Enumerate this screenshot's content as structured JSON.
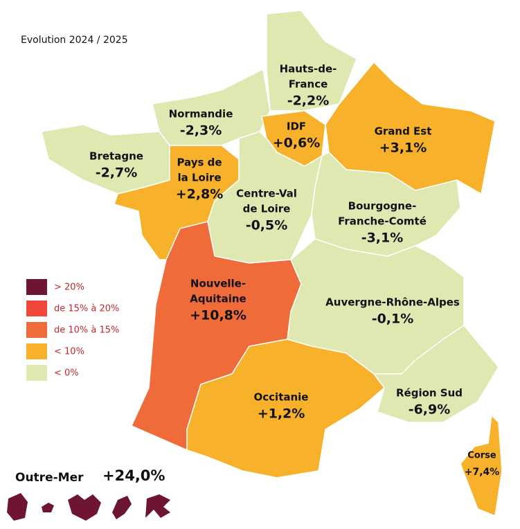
{
  "title": "Evolution 2024 / 2025",
  "legend": [
    {
      "label": "> 20%",
      "color": "#6d1533"
    },
    {
      "label": "de 15% à 20%",
      "color": "#f2473d"
    },
    {
      "label": "de 10% à 15%",
      "color": "#f06b3a"
    },
    {
      "label": "< 10%",
      "color": "#f7b12b"
    },
    {
      "label": "< 0%",
      "color": "#e0e8b2"
    }
  ],
  "regions": [
    {
      "name": [
        "Hauts-de-",
        "France"
      ],
      "value": "-2,2%",
      "color": "#e0e8b2"
    },
    {
      "name": [
        "Normandie"
      ],
      "value": "-2,3%",
      "color": "#e0e8b2"
    },
    {
      "name": [
        "Bretagne"
      ],
      "value": "-2,7%",
      "color": "#e0e8b2"
    },
    {
      "name": [
        "IDF"
      ],
      "value": "+0,6%",
      "color": "#f7b12b"
    },
    {
      "name": [
        "Grand Est"
      ],
      "value": "+3,1%",
      "color": "#f7b12b"
    },
    {
      "name": [
        "Pays de",
        "la Loire"
      ],
      "value": "+2,8%",
      "color": "#f7b12b"
    },
    {
      "name": [
        "Centre-Val",
        "de Loire"
      ],
      "value": "-0,5%",
      "color": "#e0e8b2"
    },
    {
      "name": [
        "Bourgogne-",
        "Franche-Comté"
      ],
      "value": "-3,1%",
      "color": "#e0e8b2"
    },
    {
      "name": [
        "Nouvelle-",
        "Aquitaine"
      ],
      "value": "+10,8%",
      "color": "#f06b3a"
    },
    {
      "name": [
        "Auvergne-Rhône-Alpes"
      ],
      "value": "-0,1%",
      "color": "#e0e8b2"
    },
    {
      "name": [
        "Occitanie"
      ],
      "value": "+1,2%",
      "color": "#f7b12b"
    },
    {
      "name": [
        "Région Sud"
      ],
      "value": "-6,9%",
      "color": "#e0e8b2"
    },
    {
      "name": [
        "Corse"
      ],
      "value": "+7,4%",
      "color": "#f7b12b"
    }
  ],
  "outre_mer": {
    "name": "Outre-Mer",
    "value": "+24,0%",
    "color": "#6d1533"
  }
}
